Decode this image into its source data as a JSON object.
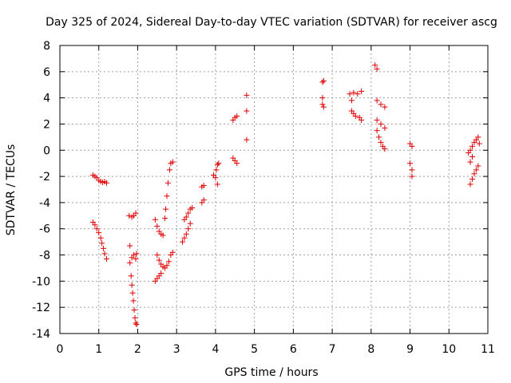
{
  "chart_data": {
    "type": "scatter",
    "title": "Day 325 of 2024, Sidereal Day-to-day VTEC variation (SDTVAR) for receiver ascg",
    "xlabel": "GPS time / hours",
    "ylabel": "SDTVAR / TECUs",
    "xlim": [
      0,
      11
    ],
    "ylim": [
      -14,
      8
    ],
    "xticks": [
      "0",
      "1",
      "2",
      "3",
      "4",
      "5",
      "6",
      "7",
      "8",
      "9",
      "10",
      "11"
    ],
    "yticks": [
      "-14",
      "-12",
      "-10",
      "-8",
      "-6",
      "-4",
      "-2",
      "0",
      "2",
      "4",
      "6",
      "8"
    ],
    "grid": true,
    "marker": "+",
    "color": "#e00000",
    "series": [
      {
        "name": "SDTVAR",
        "points": [
          [
            0.85,
            -1.9
          ],
          [
            0.9,
            -2.0
          ],
          [
            0.95,
            -2.1
          ],
          [
            1.0,
            -2.3
          ],
          [
            1.05,
            -2.4
          ],
          [
            1.1,
            -2.45
          ],
          [
            1.15,
            -2.4
          ],
          [
            1.2,
            -2.5
          ],
          [
            0.85,
            -5.5
          ],
          [
            0.9,
            -5.7
          ],
          [
            0.95,
            -6.0
          ],
          [
            1.0,
            -6.3
          ],
          [
            1.05,
            -6.7
          ],
          [
            1.08,
            -7.1
          ],
          [
            1.12,
            -7.5
          ],
          [
            1.15,
            -7.9
          ],
          [
            1.2,
            -8.3
          ],
          [
            1.78,
            -5.0
          ],
          [
            1.85,
            -5.1
          ],
          [
            1.9,
            -5.0
          ],
          [
            1.95,
            -4.8
          ],
          [
            1.8,
            -7.3
          ],
          [
            1.8,
            -8.6
          ],
          [
            1.85,
            -8.2
          ],
          [
            1.9,
            -8.0
          ],
          [
            1.95,
            -8.3
          ],
          [
            1.97,
            -7.9
          ],
          [
            1.83,
            -9.6
          ],
          [
            1.85,
            -10.3
          ],
          [
            1.87,
            -10.9
          ],
          [
            1.89,
            -11.5
          ],
          [
            1.91,
            -12.2
          ],
          [
            1.93,
            -12.8
          ],
          [
            1.95,
            -13.2
          ],
          [
            1.97,
            -13.3
          ],
          [
            2.45,
            -5.3
          ],
          [
            2.5,
            -5.8
          ],
          [
            2.55,
            -6.2
          ],
          [
            2.6,
            -6.4
          ],
          [
            2.65,
            -6.5
          ],
          [
            2.7,
            -5.2
          ],
          [
            2.72,
            -4.5
          ],
          [
            2.75,
            -3.5
          ],
          [
            2.78,
            -2.5
          ],
          [
            2.82,
            -1.5
          ],
          [
            2.85,
            -1.0
          ],
          [
            2.9,
            -0.9
          ],
          [
            2.45,
            -10.0
          ],
          [
            2.5,
            -9.8
          ],
          [
            2.55,
            -9.6
          ],
          [
            2.6,
            -9.4
          ],
          [
            2.5,
            -8.0
          ],
          [
            2.55,
            -8.4
          ],
          [
            2.6,
            -8.7
          ],
          [
            2.65,
            -8.9
          ],
          [
            2.7,
            -9.0
          ],
          [
            2.75,
            -8.8
          ],
          [
            2.8,
            -8.5
          ],
          [
            2.85,
            -8.0
          ],
          [
            2.9,
            -7.8
          ],
          [
            3.15,
            -7.0
          ],
          [
            3.2,
            -6.7
          ],
          [
            3.25,
            -6.4
          ],
          [
            3.3,
            -6.0
          ],
          [
            3.35,
            -5.6
          ],
          [
            3.2,
            -5.3
          ],
          [
            3.25,
            -5.1
          ],
          [
            3.3,
            -4.8
          ],
          [
            3.35,
            -4.5
          ],
          [
            3.4,
            -4.4
          ],
          [
            3.65,
            -4.0
          ],
          [
            3.7,
            -3.8
          ],
          [
            3.65,
            -2.8
          ],
          [
            3.7,
            -2.7
          ],
          [
            3.95,
            -1.9
          ],
          [
            4.0,
            -2.1
          ],
          [
            4.02,
            -1.5
          ],
          [
            4.05,
            -1.1
          ],
          [
            4.08,
            -1.0
          ],
          [
            4.05,
            -2.6
          ],
          [
            4.45,
            2.3
          ],
          [
            4.5,
            2.5
          ],
          [
            4.55,
            2.6
          ],
          [
            4.45,
            -0.6
          ],
          [
            4.5,
            -0.8
          ],
          [
            4.55,
            -1.0
          ],
          [
            4.8,
            4.2
          ],
          [
            4.8,
            3.0
          ],
          [
            4.8,
            0.8
          ],
          [
            6.75,
            5.2
          ],
          [
            6.78,
            5.3
          ],
          [
            6.75,
            3.5
          ],
          [
            6.75,
            4.0
          ],
          [
            6.78,
            3.3
          ],
          [
            7.45,
            4.3
          ],
          [
            7.55,
            4.4
          ],
          [
            7.65,
            4.3
          ],
          [
            7.75,
            4.5
          ],
          [
            7.5,
            3.8
          ],
          [
            7.5,
            3.0
          ],
          [
            7.55,
            2.8
          ],
          [
            7.6,
            2.6
          ],
          [
            7.7,
            2.5
          ],
          [
            7.75,
            2.3
          ],
          [
            8.1,
            6.5
          ],
          [
            8.15,
            6.2
          ],
          [
            8.15,
            3.8
          ],
          [
            8.25,
            3.5
          ],
          [
            8.35,
            3.3
          ],
          [
            8.15,
            2.3
          ],
          [
            8.25,
            2.0
          ],
          [
            8.35,
            1.7
          ],
          [
            8.15,
            1.5
          ],
          [
            8.2,
            1.0
          ],
          [
            8.25,
            0.6
          ],
          [
            8.3,
            0.3
          ],
          [
            8.35,
            0.1
          ],
          [
            9.0,
            0.5
          ],
          [
            9.05,
            0.3
          ],
          [
            9.0,
            -1.0
          ],
          [
            9.05,
            -1.5
          ],
          [
            9.05,
            -2.0
          ],
          [
            10.5,
            -0.2
          ],
          [
            10.55,
            0.0
          ],
          [
            10.6,
            0.3
          ],
          [
            10.65,
            0.6
          ],
          [
            10.7,
            0.8
          ],
          [
            10.75,
            1.0
          ],
          [
            10.78,
            0.5
          ],
          [
            10.6,
            -0.5
          ],
          [
            10.55,
            -0.9
          ],
          [
            10.55,
            -2.6
          ],
          [
            10.6,
            -2.2
          ],
          [
            10.65,
            -1.8
          ],
          [
            10.7,
            -1.5
          ],
          [
            10.75,
            -1.2
          ]
        ]
      }
    ]
  }
}
